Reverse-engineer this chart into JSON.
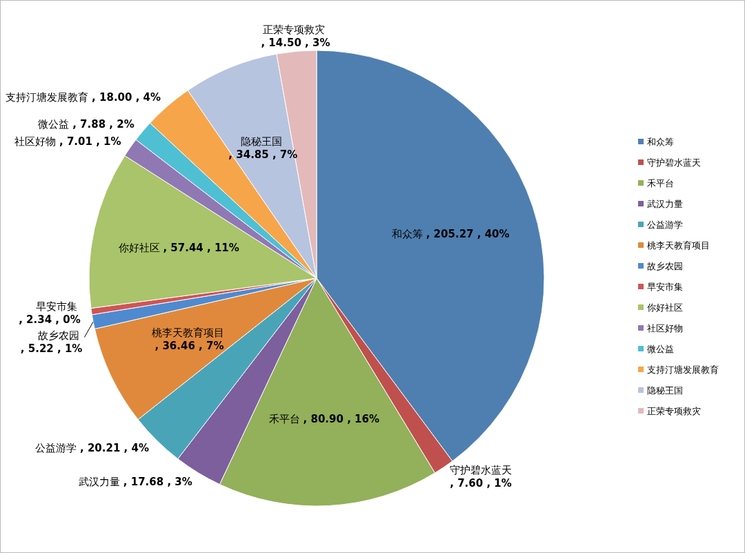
{
  "chart_data": {
    "type": "pie",
    "categories": [
      "和众筹",
      "守护碧水蓝天",
      "禾平台",
      "武汉力量",
      "公益游学",
      "桃李天教育项目",
      "故乡农园",
      "早安市集",
      "你好社区",
      "社区好物",
      "微公益",
      "支持汀塘发展教育",
      "隐秘王国",
      "正荣专项救灾"
    ],
    "values": [
      205.27,
      7.6,
      80.9,
      17.68,
      20.21,
      36.46,
      5.22,
      2.34,
      57.44,
      7.01,
      7.88,
      18.0,
      34.85,
      14.5
    ],
    "colors": [
      "#4f7fb0",
      "#c0504d",
      "#93b05a",
      "#7d5f9e",
      "#4aa4b8",
      "#e0893c",
      "#4f8ad0",
      "#d05555",
      "#a9c46a",
      "#9078b4",
      "#4fbfd4",
      "#f7a54a",
      "#b7c4df",
      "#e4b9b9"
    ],
    "value_labels": [
      ", 205.27 , 40%",
      ", 7.60 , 1%",
      ", 80.90 , 16%",
      ", 17.68 , 3%",
      ", 20.21 , 4%",
      ", 36.46 , 7%",
      ", 5.22 , 1%",
      ", 2.34 , 0%",
      ", 57.44 , 11%",
      ", 7.01 , 1%",
      ", 7.88 , 2%",
      ", 18.00 , 4%",
      ", 34.85 , 7%",
      ", 14.50 , 3%"
    ],
    "legend": "right"
  }
}
